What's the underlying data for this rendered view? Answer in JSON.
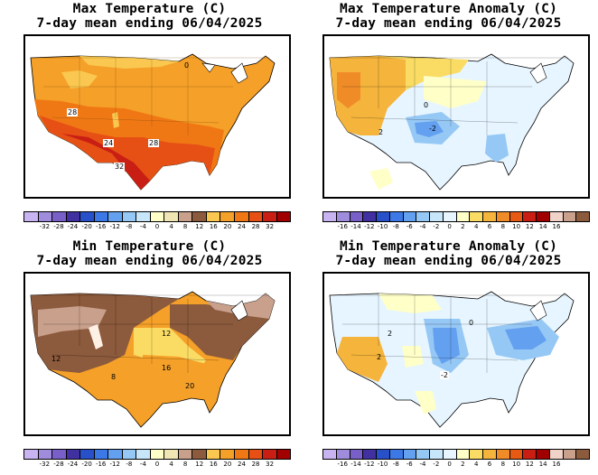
{
  "panels": [
    {
      "title_line1": "Max Temperature (C)",
      "title_line2": "7-day mean ending 06/04/2025",
      "colorbar": {
        "colors": [
          "#c8b4f0",
          "#a08cdc",
          "#7860c8",
          "#4030a0",
          "#2850c8",
          "#3c78e6",
          "#64a0f0",
          "#96c8f5",
          "#c8e6fa",
          "#ffffc8",
          "#f0e6b4",
          "#c8a08c",
          "#8c5a3c",
          "#fac850",
          "#f5a028",
          "#f07814",
          "#e65014",
          "#c81e14",
          "#a00000"
        ],
        "labels": [
          "-32",
          "-28",
          "-24",
          "-20",
          "-16",
          "-12",
          "-8",
          "-4",
          "0",
          "4",
          "8",
          "12",
          "16",
          "20",
          "24",
          "28",
          "32"
        ]
      },
      "map_labels": [
        "28",
        "24",
        "28",
        "32",
        "0"
      ]
    },
    {
      "title_line1": "Max Temperature Anomaly (C)",
      "title_line2": "7-day mean ending 06/04/2025",
      "colorbar": {
        "colors": [
          "#c8b4f0",
          "#a08cdc",
          "#7860c8",
          "#4030a0",
          "#2850c8",
          "#3c78e6",
          "#64a0f0",
          "#96c8f5",
          "#c8e6fa",
          "#e6f5ff",
          "#ffffc8",
          "#fadc64",
          "#f5b43c",
          "#f08c28",
          "#e65a14",
          "#c81e14",
          "#a00000",
          "#f0d2c8",
          "#c8a08c",
          "#8c5a3c"
        ],
        "labels": [
          "-16",
          "-14",
          "-12",
          "-10",
          "-8",
          "-6",
          "-4",
          "-2",
          "0",
          "2",
          "4",
          "6",
          "8",
          "10",
          "12",
          "14",
          "16"
        ]
      },
      "map_labels": [
        "0",
        "2",
        "-2"
      ]
    },
    {
      "title_line1": "Min Temperature (C)",
      "title_line2": "7-day mean ending 06/04/2025",
      "colorbar": {
        "colors": [
          "#c8b4f0",
          "#a08cdc",
          "#7860c8",
          "#4030a0",
          "#2850c8",
          "#3c78e6",
          "#64a0f0",
          "#96c8f5",
          "#c8e6fa",
          "#ffffc8",
          "#f0e6b4",
          "#c8a08c",
          "#8c5a3c",
          "#fac850",
          "#f5a028",
          "#f07814",
          "#e65014",
          "#c81e14",
          "#a00000"
        ],
        "labels": [
          "-32",
          "-28",
          "-24",
          "-20",
          "-16",
          "-12",
          "-8",
          "-4",
          "0",
          "4",
          "8",
          "12",
          "16",
          "20",
          "24",
          "28",
          "32"
        ]
      },
      "map_labels": [
        "12",
        "12",
        "8",
        "16",
        "20"
      ]
    },
    {
      "title_line1": "Min Temperature Anomaly (C)",
      "title_line2": "7-day mean ending 06/04/2025",
      "colorbar": {
        "colors": [
          "#c8b4f0",
          "#a08cdc",
          "#7860c8",
          "#4030a0",
          "#2850c8",
          "#3c78e6",
          "#64a0f0",
          "#96c8f5",
          "#c8e6fa",
          "#e6f5ff",
          "#ffffc8",
          "#fadc64",
          "#f5b43c",
          "#f08c28",
          "#e65a14",
          "#c81e14",
          "#a00000",
          "#f0d2c8",
          "#c8a08c",
          "#8c5a3c"
        ],
        "labels": [
          "-16",
          "-14",
          "-12",
          "-10",
          "-8",
          "-6",
          "-4",
          "-2",
          "0",
          "2",
          "4",
          "6",
          "8",
          "10",
          "12",
          "14",
          "16"
        ]
      },
      "map_labels": [
        "2",
        "2",
        "-2",
        "0"
      ]
    }
  ]
}
